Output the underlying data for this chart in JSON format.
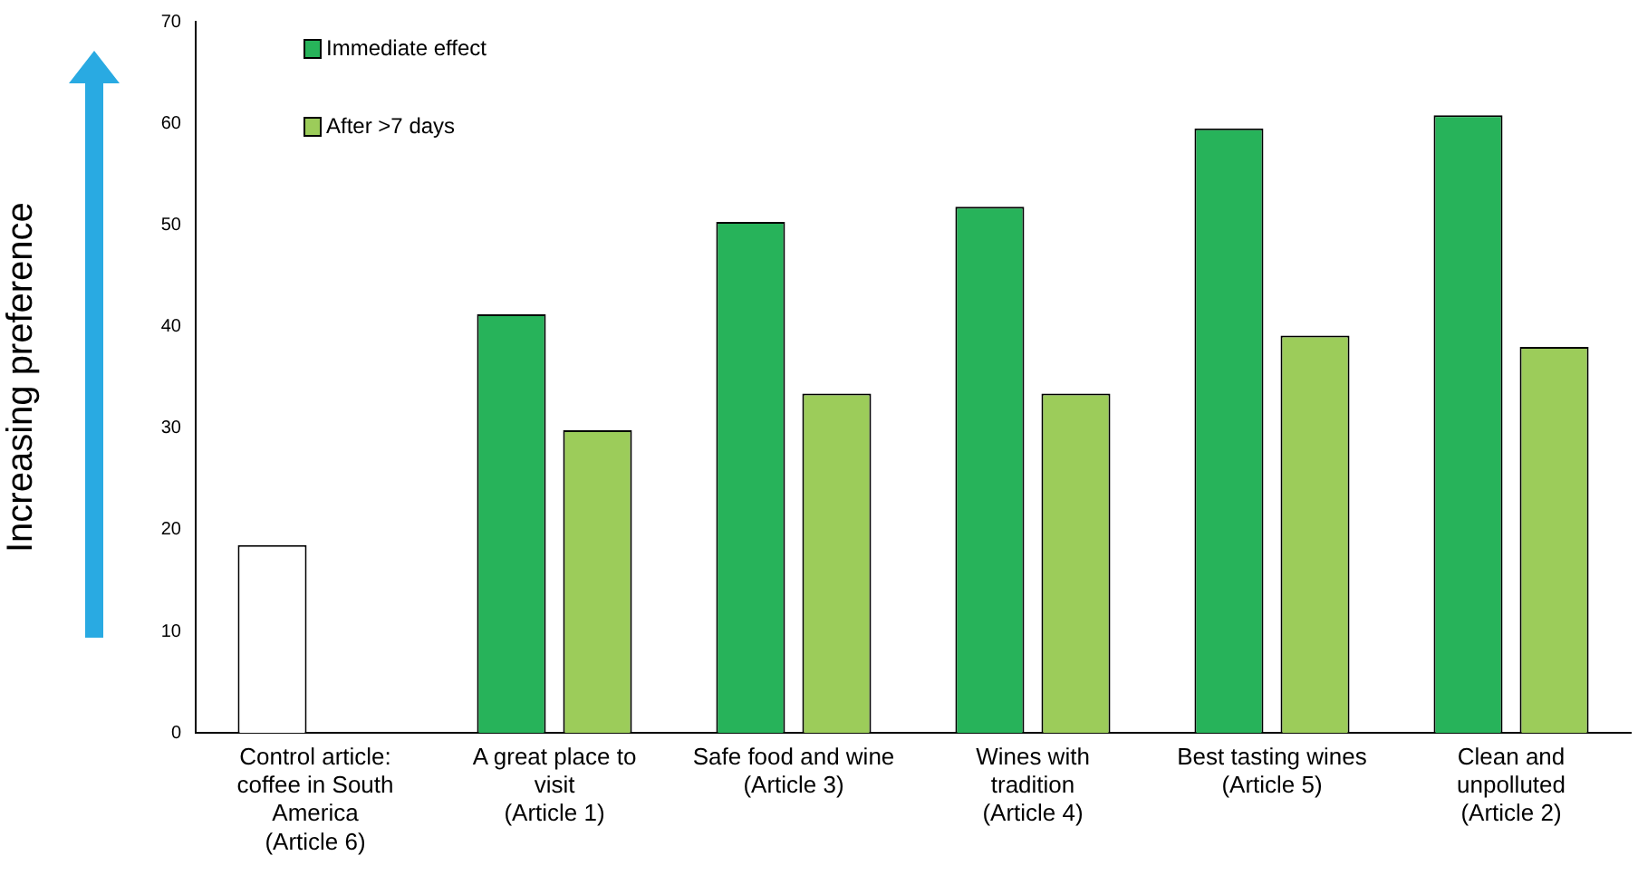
{
  "chart_data": {
    "type": "bar",
    "ylabel": "Increasing preference",
    "categories": [
      "Control article: coffee in South America (Article 6)",
      "A great place to visit (Article 1)",
      "Safe food and wine (Article 3)",
      "Wines with tradition (Article 4)",
      "Best tasting wines (Article 5)",
      "Clean and unpolluted (Article 2)"
    ],
    "series": [
      {
        "name": "Immediate effect",
        "color": "#27b35a",
        "colors": [
          "#ffffff",
          "#27b35a",
          "#27b35a",
          "#27b35a",
          "#27b35a",
          "#27b35a"
        ],
        "values": [
          18.5,
          41.2,
          50.3,
          51.8,
          59.5,
          60.8
        ]
      },
      {
        "name": "After >7 days",
        "color": "#9ccc5a",
        "values": [
          null,
          29.8,
          33.4,
          33.4,
          39.1,
          38.0
        ]
      }
    ],
    "ylim": [
      0,
      70
    ],
    "yticks": [
      0,
      10,
      20,
      30,
      40,
      50,
      60,
      70
    ],
    "grid": false,
    "legend": "top left"
  }
}
